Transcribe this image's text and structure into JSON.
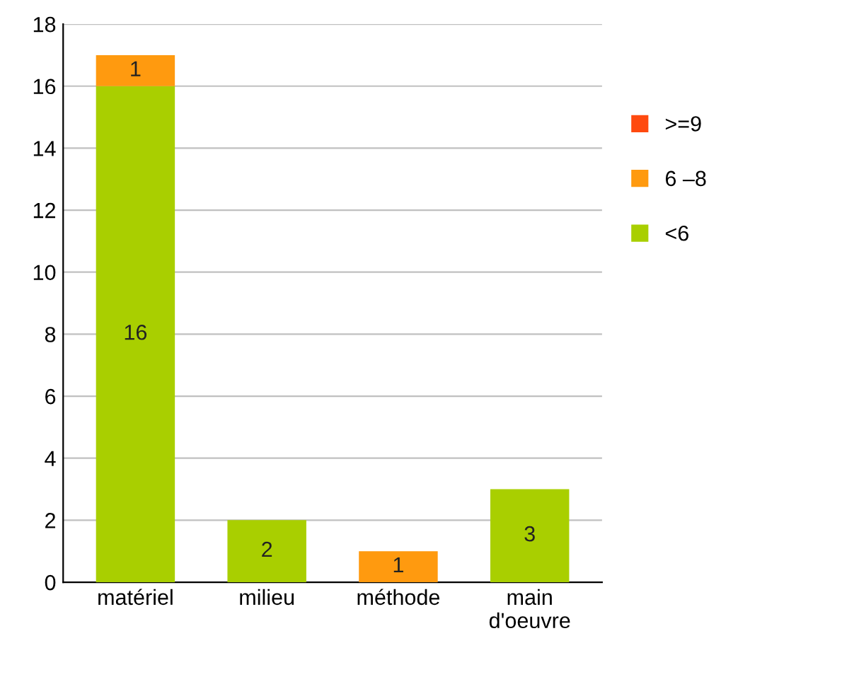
{
  "chart_data": {
    "type": "bar",
    "stacked": true,
    "categories": [
      "matériel",
      "milieu",
      "méthode",
      "main\nd'oeuvre"
    ],
    "series": [
      {
        "name": "<6",
        "color": "#a9cf00",
        "values": [
          16,
          2,
          0,
          3
        ],
        "value_labels": [
          "16",
          "2",
          null,
          "3"
        ]
      },
      {
        "name": "6 –8",
        "color": "#ff9a0f",
        "values": [
          1,
          0,
          1,
          0
        ],
        "value_labels": [
          "1",
          null,
          "1",
          null
        ]
      },
      {
        "name": ">=9",
        "color": "#ff4a0f",
        "values": [
          0,
          0,
          0,
          0
        ],
        "value_labels": [
          null,
          null,
          null,
          null
        ]
      }
    ],
    "ylim": [
      0,
      18
    ],
    "yticks": [
      0,
      2,
      4,
      6,
      8,
      10,
      12,
      14,
      16,
      18
    ],
    "grid": "y",
    "legend": "right"
  }
}
